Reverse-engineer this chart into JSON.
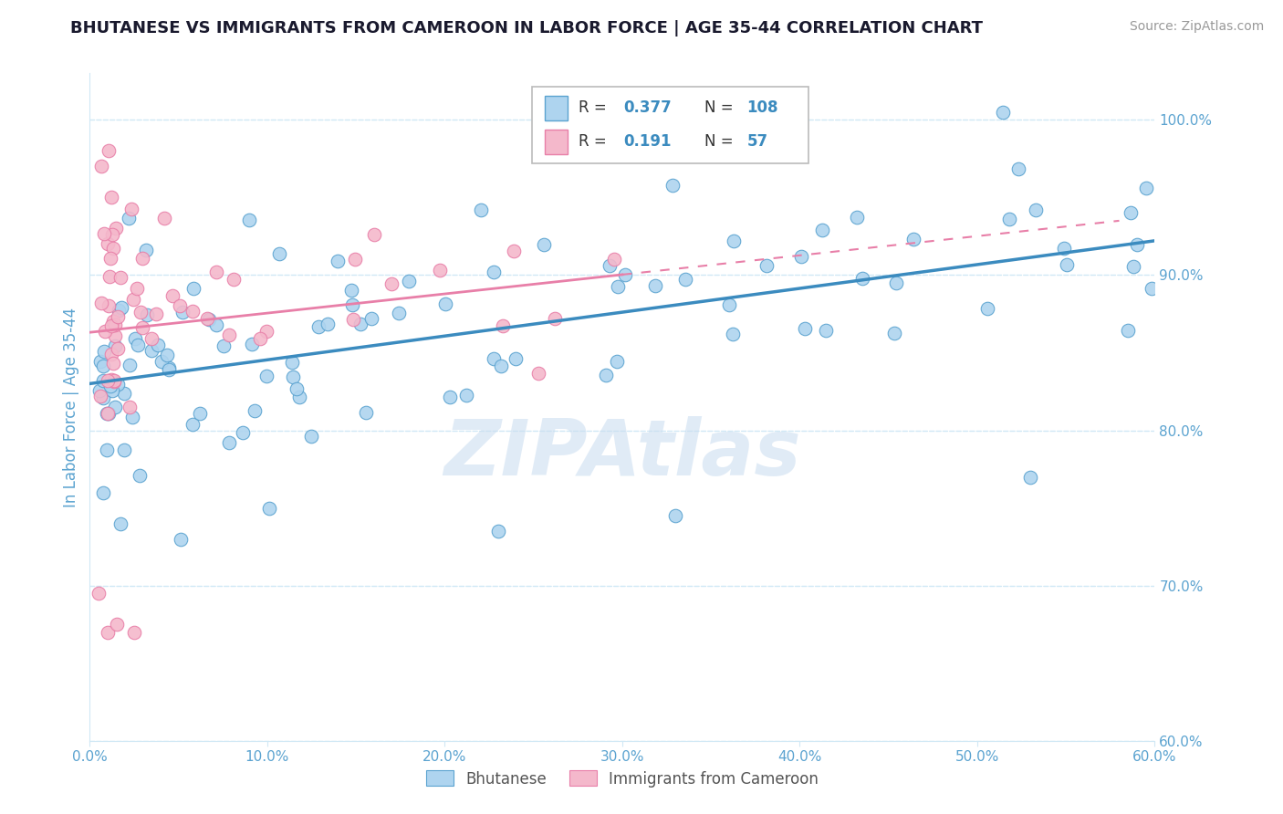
{
  "title": "BHUTANESE VS IMMIGRANTS FROM CAMEROON IN LABOR FORCE | AGE 35-44 CORRELATION CHART",
  "source_text": "Source: ZipAtlas.com",
  "ylabel": "In Labor Force | Age 35-44",
  "xlim": [
    0.0,
    0.6
  ],
  "ylim": [
    0.6,
    1.03
  ],
  "xticks": [
    0.0,
    0.1,
    0.2,
    0.3,
    0.4,
    0.5,
    0.6
  ],
  "xticklabels": [
    "0.0%",
    "10.0%",
    "20.0%",
    "30.0%",
    "40.0%",
    "50.0%",
    "60.0%"
  ],
  "yticks": [
    0.6,
    0.7,
    0.8,
    0.9,
    1.0
  ],
  "yticklabels": [
    "60.0%",
    "70.0%",
    "80.0%",
    "90.0%",
    "100.0%"
  ],
  "blue_R": 0.377,
  "blue_N": 108,
  "pink_R": 0.191,
  "pink_N": 57,
  "blue_color": "#aed4ef",
  "pink_color": "#f4b8cb",
  "blue_edge_color": "#5ba3d0",
  "pink_edge_color": "#e87fa8",
  "blue_line_color": "#3b8bbf",
  "pink_line_color": "#e87fa8",
  "axis_color": "#5ba3d0",
  "grid_color": "#d0e8f5",
  "watermark": "ZIPAtlas",
  "title_color": "#1a1a2e",
  "source_color": "#999999",
  "legend_text_color": "#333333",
  "legend_value_color": "#3b8bbf"
}
